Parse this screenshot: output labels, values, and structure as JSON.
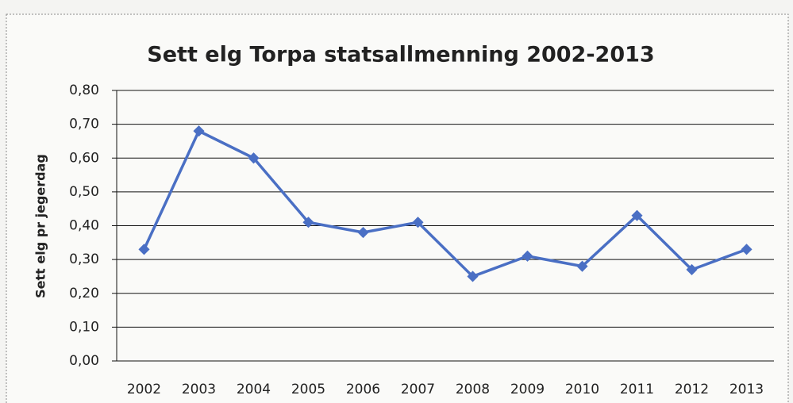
{
  "chart_data": {
    "type": "line",
    "title": "Sett elg Torpa statsallmenning 2002-2013",
    "y_label": "Sett elg pr jegerdag",
    "categories": [
      "2002",
      "2003",
      "2004",
      "2005",
      "2006",
      "2007",
      "2008",
      "2009",
      "2010",
      "2011",
      "2012",
      "2013"
    ],
    "values": [
      0.33,
      0.68,
      0.6,
      0.41,
      0.38,
      0.41,
      0.25,
      0.31,
      0.28,
      0.43,
      0.27,
      0.33
    ],
    "color": "#4a6fc4",
    "ylim": [
      0,
      0.8
    ],
    "yticks": [
      {
        "value": 0,
        "label": "0,00"
      },
      {
        "value": 0.1,
        "label": "0,10"
      },
      {
        "value": 0.2,
        "label": "0,20"
      },
      {
        "value": 0.3,
        "label": "0,30"
      },
      {
        "value": 0.4,
        "label": "0,40"
      },
      {
        "value": 0.5,
        "label": "0,50"
      },
      {
        "value": 0.6,
        "label": "0,60"
      },
      {
        "value": 0.7,
        "label": "0,70"
      },
      {
        "value": 0.8,
        "label": "0,80"
      }
    ],
    "grid": true
  }
}
